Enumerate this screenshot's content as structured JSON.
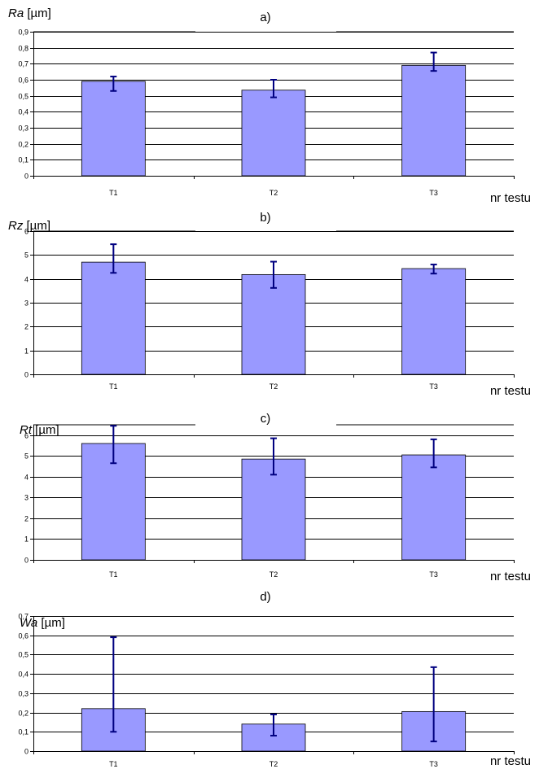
{
  "chart_data": [
    {
      "type": "bar",
      "title": "a)",
      "ylabel_var": "Ra",
      "ylabel_unit": " [µm]",
      "xlabel": "nr testu",
      "categories": [
        "T1",
        "T2",
        "T3"
      ],
      "values": [
        0.59,
        0.535,
        0.69
      ],
      "error_low": [
        0.53,
        0.49,
        0.655
      ],
      "error_high": [
        0.62,
        0.6,
        0.77
      ],
      "ylim": [
        0,
        0.9
      ],
      "yticks": [
        0,
        0.1,
        0.2,
        0.3,
        0.4,
        0.5,
        0.6,
        0.7,
        0.8,
        0.9
      ],
      "ytick_labels": [
        "0",
        "0,1",
        "0,2",
        "0,3",
        "0,4",
        "0,5",
        "0,6",
        "0,7",
        "0,8",
        "0,9"
      ],
      "grid": true,
      "bar_color": "#9999ff",
      "error_color": "#000080"
    },
    {
      "type": "bar",
      "title": "b)",
      "ylabel_var": "Rz",
      "ylabel_unit": " [µm]",
      "xlabel": "nr testu",
      "categories": [
        "T1",
        "T2",
        "T3"
      ],
      "values": [
        4.7,
        4.18,
        4.43
      ],
      "error_low": [
        4.25,
        3.62,
        4.22
      ],
      "error_high": [
        5.45,
        4.72,
        4.6
      ],
      "ylim": [
        0,
        6
      ],
      "yticks": [
        0,
        1,
        2,
        3,
        4,
        5,
        6
      ],
      "ytick_labels": [
        "0",
        "1",
        "2",
        "3",
        "4",
        "5",
        "6"
      ],
      "grid": true,
      "bar_color": "#9999ff",
      "error_color": "#000080"
    },
    {
      "type": "bar",
      "title": "c)",
      "ylabel_var": "Rt",
      "ylabel_unit": " [µm]",
      "xlabel": "nr testu",
      "categories": [
        "T1",
        "T2",
        "T3"
      ],
      "values": [
        5.6,
        4.85,
        5.05
      ],
      "error_low": [
        4.65,
        4.1,
        4.45
      ],
      "error_high": [
        6.45,
        5.85,
        5.8
      ],
      "ylim": [
        0,
        6.5
      ],
      "yticks": [
        0,
        1,
        2,
        3,
        4,
        5,
        6
      ],
      "ytick_labels": [
        "0",
        "1",
        "2",
        "3",
        "4",
        "5",
        "6"
      ],
      "grid": true,
      "bar_color": "#9999ff",
      "error_color": "#000080"
    },
    {
      "type": "bar",
      "title": "d)",
      "ylabel_var": "Wa",
      "ylabel_unit": " [µm]",
      "xlabel": "nr testu",
      "categories": [
        "T1",
        "T2",
        "T3"
      ],
      "values": [
        0.22,
        0.14,
        0.205
      ],
      "error_low": [
        0.1,
        0.08,
        0.05
      ],
      "error_high": [
        0.59,
        0.19,
        0.435
      ],
      "ylim": [
        0,
        0.7
      ],
      "yticks": [
        0,
        0.1,
        0.2,
        0.3,
        0.4,
        0.5,
        0.6,
        0.7
      ],
      "ytick_labels": [
        "0",
        "0,1",
        "0,2",
        "0,3",
        "0,4",
        "0,5",
        "0,6",
        "0,7"
      ],
      "grid": true,
      "bar_color": "#9999ff",
      "error_color": "#000080"
    }
  ]
}
